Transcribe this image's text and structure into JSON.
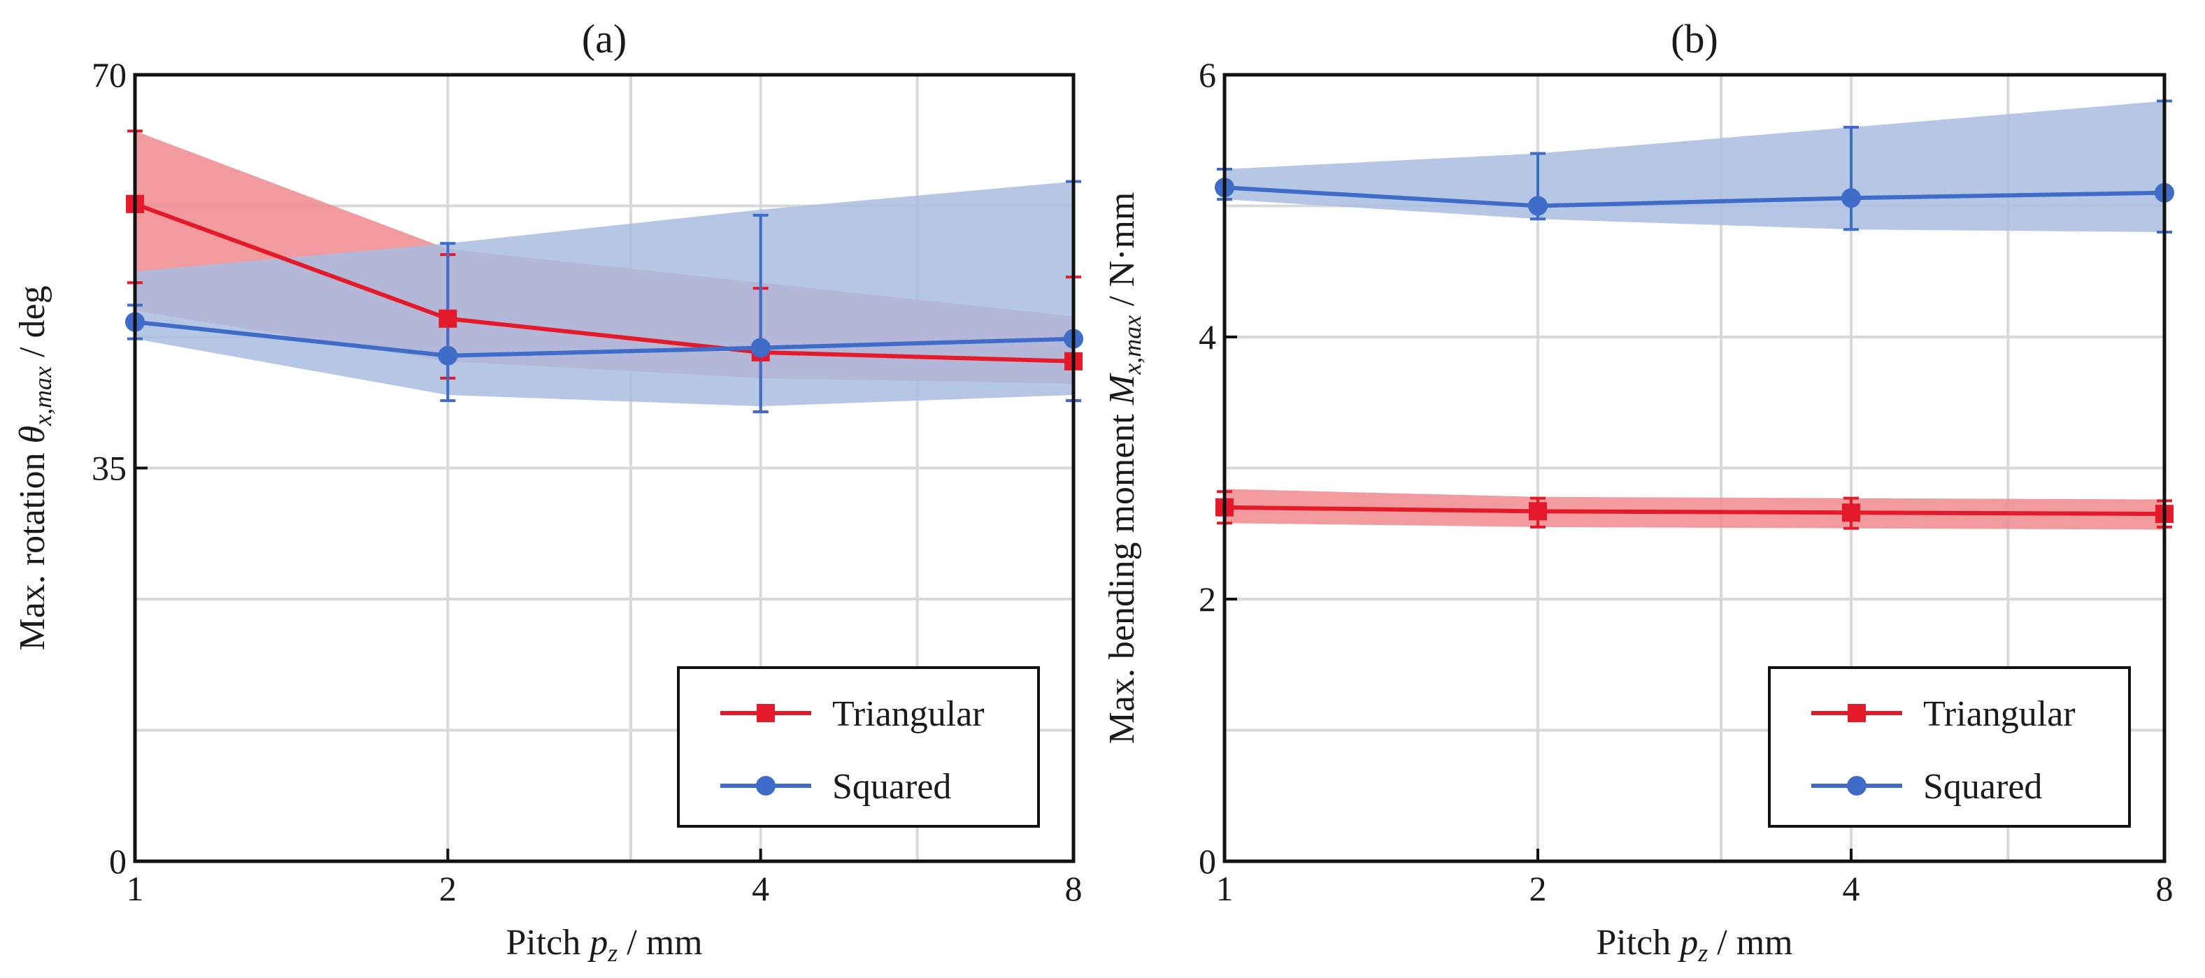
{
  "chart_data": [
    {
      "type": "line",
      "panel_label": "(a)",
      "ylabel_pre": "Max. rotation ",
      "ylabel_sym": "θ",
      "ylabel_sub": "x,max",
      "ylabel_post": " / deg",
      "xlabel_pre": "Pitch ",
      "xlabel_sym": "p",
      "xlabel_sub": "z",
      "xlabel_post": " / mm",
      "x": [
        1,
        2,
        4,
        8
      ],
      "x_scale": "log2",
      "xlim": [
        1,
        8
      ],
      "xticks": [
        1,
        2,
        4,
        8
      ],
      "xtick_labels": [
        "1",
        "2",
        "4",
        "8"
      ],
      "x_minor_grid": [
        3,
        5.66
      ],
      "ylim": [
        0,
        70
      ],
      "yticks": [
        0,
        35,
        70
      ],
      "ytick_labels": [
        "0",
        "35",
        "70"
      ],
      "y_minor_grid": [
        11.67,
        23.33,
        46.67,
        58.33
      ],
      "grid": true,
      "legend_position": "bottom-right",
      "series": [
        {
          "name": "Triangular",
          "color": "#e41a2a",
          "band_color": "#f08a8e",
          "marker": "square",
          "values": [
            58.5,
            48.3,
            45.3,
            44.5
          ],
          "error_low": [
            51.5,
            43.0,
            40.0,
            41.0
          ],
          "error_high": [
            65.0,
            54.0,
            51.0,
            52.0
          ],
          "band_low": [
            49.0,
            44.5,
            43.0,
            42.5
          ],
          "band_high": [
            65.0,
            54.5,
            51.5,
            48.5
          ]
        },
        {
          "name": "Squared",
          "color": "#3f6cc8",
          "band_color": "#a9bde2",
          "marker": "circle",
          "values": [
            48.0,
            45.0,
            45.7,
            46.5
          ],
          "error_low": [
            46.5,
            41.0,
            40.0,
            41.0
          ],
          "error_high": [
            49.5,
            55.0,
            57.5,
            60.5
          ],
          "band_low": [
            46.5,
            41.5,
            40.5,
            41.5
          ],
          "band_high": [
            52.5,
            55.0,
            58.0,
            60.5
          ]
        }
      ]
    },
    {
      "type": "line",
      "panel_label": "(b)",
      "ylabel_pre": "Max. bending moment ",
      "ylabel_sym": "M",
      "ylabel_sub": "x,max",
      "ylabel_post": " / N·mm",
      "xlabel_pre": "Pitch ",
      "xlabel_sym": "p",
      "xlabel_sub": "z",
      "xlabel_post": " / mm",
      "x": [
        1,
        2,
        4,
        8
      ],
      "x_scale": "log2",
      "xlim": [
        1,
        8
      ],
      "xticks": [
        1,
        2,
        4,
        8
      ],
      "xtick_labels": [
        "1",
        "2",
        "4",
        "8"
      ],
      "x_minor_grid": [
        3,
        5.66
      ],
      "ylim": [
        0,
        6
      ],
      "yticks": [
        0,
        2,
        4,
        6
      ],
      "ytick_labels": [
        "0",
        "2",
        "4",
        "6"
      ],
      "y_minor_grid": [
        1,
        3,
        5
      ],
      "grid": true,
      "legend_position": "bottom-right",
      "series": [
        {
          "name": "Triangular",
          "color": "#e41a2a",
          "band_color": "#f08a8e",
          "marker": "square",
          "values": [
            2.7,
            2.67,
            2.66,
            2.65
          ],
          "error_low": [
            2.58,
            2.55,
            2.54,
            2.55
          ],
          "error_high": [
            2.82,
            2.77,
            2.77,
            2.75
          ],
          "band_low": [
            2.58,
            2.55,
            2.54,
            2.53
          ],
          "band_high": [
            2.84,
            2.78,
            2.77,
            2.76
          ]
        },
        {
          "name": "Squared",
          "color": "#3f6cc8",
          "band_color": "#a9bde2",
          "marker": "circle",
          "values": [
            5.14,
            5.0,
            5.06,
            5.1
          ],
          "error_low": [
            5.05,
            4.9,
            4.82,
            4.8
          ],
          "error_high": [
            5.28,
            5.4,
            5.6,
            5.8
          ],
          "band_low": [
            5.05,
            4.9,
            4.82,
            4.8
          ],
          "band_high": [
            5.28,
            5.4,
            5.6,
            5.8
          ]
        }
      ]
    }
  ]
}
